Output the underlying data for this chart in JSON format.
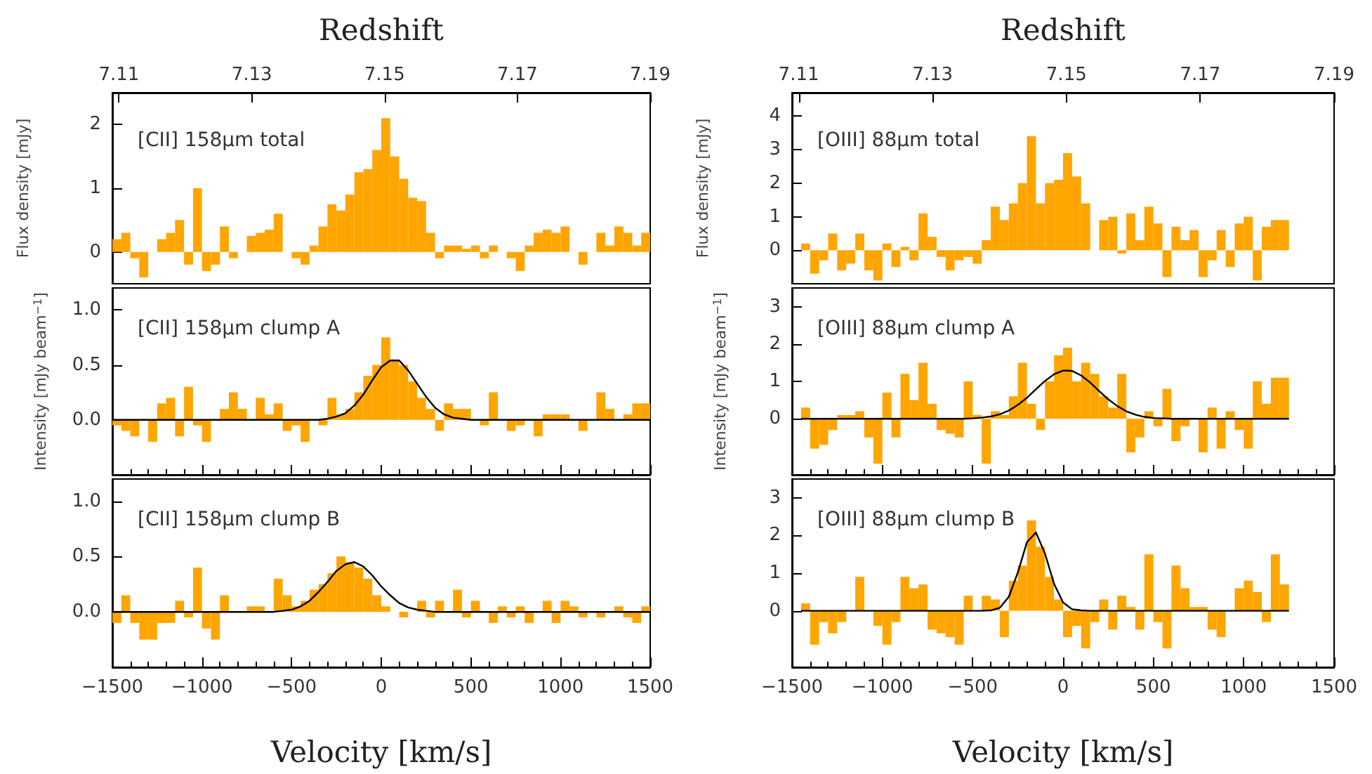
{
  "chart_data": [
    {
      "type": "histogram",
      "x2label": "Redshift",
      "ylabel": "Flux density [mJy]",
      "annotations": [
        "[CII] 158μm total"
      ],
      "x2lim": [
        7.109,
        7.19
      ],
      "x2ticks": [
        7.11,
        7.13,
        7.15,
        7.17,
        7.19
      ],
      "ylim": [
        -0.5,
        2.5
      ],
      "yticks": [
        0,
        1,
        2
      ],
      "series": [
        {
          "axis": "x2",
          "color": "#ffa500",
          "bins": [
            7.109,
            7.11035,
            7.1117,
            7.11305,
            7.1144,
            7.11575,
            7.1171,
            7.11845,
            7.1198,
            7.12115,
            7.1225,
            7.12385,
            7.1252,
            7.12655,
            7.1279,
            7.12925,
            7.1306,
            7.13195,
            7.1333,
            7.13465,
            7.136,
            7.13735,
            7.1387,
            7.14005,
            7.1414,
            7.14275,
            7.1441,
            7.14545,
            7.1468,
            7.14815,
            7.1495,
            7.15085,
            7.1522,
            7.15355,
            7.1549,
            7.15625,
            7.1576,
            7.15895,
            7.1603,
            7.16165,
            7.163,
            7.16435,
            7.1657,
            7.16705,
            7.1684,
            7.16975,
            7.1711,
            7.17245,
            7.1738,
            7.17515,
            7.1765,
            7.17785,
            7.1792,
            7.18055,
            7.1819,
            7.18325,
            7.1846,
            7.18595,
            7.1873,
            7.18865,
            7.19
          ],
          "values": [
            0.2,
            0.3,
            -0.1,
            -0.4,
            0.0,
            0.2,
            0.3,
            0.5,
            -0.2,
            1.0,
            -0.3,
            -0.2,
            0.4,
            -0.1,
            0.0,
            0.25,
            0.3,
            0.35,
            0.6,
            0.0,
            -0.1,
            -0.2,
            0.1,
            0.4,
            0.75,
            0.65,
            0.9,
            1.25,
            1.3,
            1.6,
            2.1,
            1.5,
            1.15,
            0.85,
            0.8,
            0.3,
            -0.1,
            0.1,
            0.1,
            0.05,
            0.1,
            -0.1,
            0.1,
            0.0,
            -0.1,
            -0.3,
            0.1,
            0.3,
            0.35,
            0.3,
            0.4,
            0.0,
            -0.2,
            0.0,
            0.3,
            0.1,
            0.4,
            0.3,
            0.1,
            0.3
          ]
        }
      ]
    },
    {
      "type": "histogram",
      "x2label": "Redshift",
      "ylabel": "Flux density [mJy]",
      "annotations": [
        "[OIII] 88μm total"
      ],
      "x2lim": [
        7.109,
        7.19
      ],
      "x2ticks": [
        7.11,
        7.13,
        7.15,
        7.17,
        7.19
      ],
      "ylim": [
        -1,
        4.7
      ],
      "yticks": [
        0,
        1,
        2,
        3,
        4
      ],
      "series": [
        {
          "axis": "x2",
          "color": "#ffa500",
          "bins": [
            7.11035,
            7.1117,
            7.11305,
            7.1144,
            7.11575,
            7.1171,
            7.11845,
            7.1198,
            7.12115,
            7.1225,
            7.12385,
            7.1252,
            7.12655,
            7.1279,
            7.12925,
            7.1306,
            7.13195,
            7.1333,
            7.13465,
            7.136,
            7.13735,
            7.1387,
            7.14005,
            7.1414,
            7.14275,
            7.1441,
            7.14545,
            7.1468,
            7.14815,
            7.1495,
            7.15085,
            7.1522,
            7.15355,
            7.1549,
            7.15625,
            7.1576,
            7.15895,
            7.1603,
            7.16165,
            7.163,
            7.16435,
            7.1657,
            7.16705,
            7.1684,
            7.16975,
            7.1711,
            7.17245,
            7.1738,
            7.17515,
            7.1765,
            7.17785,
            7.1792,
            7.18055,
            7.1819,
            7.18325
          ],
          "values": [
            0.2,
            -0.7,
            -0.3,
            0.5,
            -0.6,
            -0.4,
            0.5,
            -0.6,
            -0.9,
            0.2,
            -0.5,
            0.1,
            -0.3,
            1.1,
            0.4,
            -0.2,
            -0.6,
            -0.3,
            -0.2,
            -0.4,
            0.3,
            1.3,
            0.9,
            1.4,
            2.0,
            3.4,
            1.4,
            2.0,
            2.1,
            2.9,
            2.2,
            1.4,
            0.0,
            0.9,
            1.0,
            -0.1,
            1.1,
            0.3,
            1.3,
            0.8,
            -0.8,
            0.7,
            0.3,
            0.6,
            -0.8,
            -0.3,
            0.6,
            -0.5,
            0.8,
            1.0,
            -0.9,
            0.7,
            0.9,
            0.9
          ]
        }
      ]
    },
    {
      "type": "histogram",
      "ylabel": "Intensity [mJy beam$^{−1}$]",
      "annotations": [
        "[CII] 158μm clump A"
      ],
      "xlim": [
        -1500,
        1500
      ],
      "xticks": [
        -1500,
        -1000,
        -500,
        0,
        500,
        1000,
        1500
      ],
      "ylim": [
        -0.5,
        1.2
      ],
      "yticks": [
        {
          "value": 0,
          "label": "0.0"
        },
        {
          "value": 0.5,
          "label": "0.5"
        },
        {
          "value": 1,
          "label": "1.0"
        }
      ],
      "tick_labels": "y",
      "marker": "none",
      "series": [
        {
          "color": "#ffa500",
          "bins": [
            -1500,
            -1450,
            -1400,
            -1350,
            -1300,
            -1250,
            -1200,
            -1150,
            -1100,
            -1050,
            -1000,
            -950,
            -900,
            -850,
            -800,
            -750,
            -700,
            -650,
            -600,
            -550,
            -500,
            -450,
            -400,
            -350,
            -300,
            -250,
            -200,
            -150,
            -100,
            -50,
            0,
            50,
            100,
            150,
            200,
            250,
            300,
            350,
            400,
            450,
            500,
            550,
            600,
            650,
            700,
            750,
            800,
            850,
            900,
            950,
            1000,
            1050,
            1100,
            1150,
            1200,
            1250,
            1300,
            1350,
            1400,
            1450,
            1500
          ],
          "values": [
            -0.05,
            -0.1,
            -0.15,
            0.0,
            -0.2,
            0.15,
            0.2,
            -0.15,
            0.3,
            -0.05,
            -0.2,
            0.0,
            0.1,
            0.25,
            0.1,
            0.0,
            0.2,
            0.05,
            0.15,
            -0.1,
            -0.05,
            -0.2,
            0.0,
            -0.05,
            0.2,
            0.05,
            0.1,
            0.25,
            0.4,
            0.5,
            0.75,
            0.55,
            0.5,
            0.35,
            0.2,
            0.1,
            -0.1,
            0.15,
            0.1,
            0.1,
            0.0,
            -0.05,
            0.25,
            0.0,
            -0.1,
            -0.05,
            0.0,
            -0.15,
            0.05,
            0.05,
            0.05,
            0.0,
            -0.1,
            0.0,
            0.25,
            0.1,
            0.0,
            0.05,
            0.15,
            0.15
          ]
        },
        {
          "type": "line",
          "color": "#000000",
          "x": [
            -1500,
            -350,
            -300,
            -250,
            -200,
            -150,
            -100,
            -50,
            0,
            50,
            100,
            150,
            200,
            250,
            300,
            350,
            400,
            450,
            500,
            1500
          ],
          "values": [
            0,
            0,
            0.01,
            0.03,
            0.06,
            0.13,
            0.23,
            0.36,
            0.48,
            0.54,
            0.54,
            0.45,
            0.33,
            0.21,
            0.11,
            0.05,
            0.02,
            0.01,
            0,
            0
          ]
        }
      ]
    },
    {
      "type": "histogram",
      "ylabel": "Intensity [mJy beam$^{−1}$]",
      "annotations": [
        "[OIII] 88μm clump A"
      ],
      "xlim": [
        -1500,
        1500
      ],
      "xticks": [
        -1500,
        -1000,
        -500,
        0,
        500,
        1000,
        1500
      ],
      "ylim": [
        -1.5,
        3.5
      ],
      "yticks": [
        0,
        1,
        2,
        3
      ],
      "tick_labels": "y",
      "marker": "none",
      "series": [
        {
          "color": "#ffa500",
          "bins": [
            -1450,
            -1400,
            -1350,
            -1300,
            -1250,
            -1200,
            -1150,
            -1100,
            -1050,
            -1000,
            -950,
            -900,
            -850,
            -800,
            -750,
            -700,
            -650,
            -600,
            -550,
            -500,
            -450,
            -400,
            -350,
            -300,
            -250,
            -200,
            -150,
            -100,
            -50,
            0,
            50,
            100,
            150,
            200,
            250,
            300,
            350,
            400,
            450,
            500,
            550,
            600,
            650,
            700,
            750,
            800,
            850,
            900,
            950,
            1000,
            1050,
            1100,
            1150,
            1200,
            1250
          ],
          "values": [
            0.3,
            -0.8,
            -0.7,
            -0.3,
            0.1,
            0.1,
            0.2,
            -0.5,
            -1.2,
            0.7,
            -0.5,
            1.2,
            0.5,
            1.5,
            0.4,
            -0.3,
            -0.4,
            -0.5,
            1.0,
            0.1,
            -1.2,
            0.2,
            0.1,
            0.6,
            1.5,
            0.4,
            -0.3,
            1.0,
            1.7,
            1.9,
            1.0,
            1.5,
            1.2,
            0.6,
            0.3,
            1.2,
            -0.9,
            -0.5,
            0.2,
            -0.2,
            0.8,
            -0.6,
            -0.2,
            0.0,
            -0.9,
            0.3,
            -0.8,
            0.2,
            -0.3,
            -0.8,
            1.0,
            0.4,
            1.1,
            1.1
          ]
        },
        {
          "type": "line",
          "color": "#000000",
          "x": [
            -1450,
            -600,
            -550,
            -500,
            -450,
            -400,
            -350,
            -300,
            -250,
            -200,
            -150,
            -100,
            -50,
            0,
            50,
            100,
            150,
            200,
            250,
            300,
            350,
            400,
            450,
            500,
            550,
            600,
            1250
          ],
          "values": [
            0,
            0,
            0,
            0.01,
            0.03,
            0.06,
            0.12,
            0.22,
            0.37,
            0.56,
            0.79,
            1.01,
            1.19,
            1.29,
            1.28,
            1.16,
            0.97,
            0.74,
            0.52,
            0.34,
            0.2,
            0.11,
            0.05,
            0.02,
            0.01,
            0,
            0
          ]
        }
      ]
    },
    {
      "type": "histogram",
      "xlabel": "Velocity [km/s]",
      "annotations": [
        "[CII] 158μm clump B"
      ],
      "xlim": [
        -1500,
        1500
      ],
      "xticks": [
        {
          "value": -1500,
          "label": "−1500"
        },
        {
          "value": -1000,
          "label": "−1000"
        },
        {
          "value": -500,
          "label": "−500"
        },
        0,
        500,
        1000,
        1500
      ],
      "ylim": [
        -0.5,
        1.2
      ],
      "yticks": [
        {
          "value": 0,
          "label": "0.0"
        },
        {
          "value": 0.5,
          "label": "0.5"
        },
        {
          "value": 1,
          "label": "1.0"
        }
      ],
      "marker": "none",
      "series": [
        {
          "color": "#ffa500",
          "bins": [
            -1500,
            -1450,
            -1400,
            -1350,
            -1300,
            -1250,
            -1200,
            -1150,
            -1100,
            -1050,
            -1000,
            -950,
            -900,
            -850,
            -800,
            -750,
            -700,
            -650,
            -600,
            -550,
            -500,
            -450,
            -400,
            -350,
            -300,
            -250,
            -200,
            -150,
            -100,
            -50,
            0,
            50,
            100,
            150,
            200,
            250,
            300,
            350,
            400,
            450,
            500,
            550,
            600,
            650,
            700,
            750,
            800,
            850,
            900,
            950,
            1000,
            1050,
            1100,
            1150,
            1200,
            1250,
            1300,
            1350,
            1400,
            1450,
            1500
          ],
          "values": [
            -0.1,
            0.15,
            -0.1,
            -0.25,
            -0.25,
            -0.1,
            -0.1,
            0.1,
            -0.05,
            0.4,
            -0.15,
            -0.25,
            0.15,
            0.0,
            0.0,
            0.05,
            0.05,
            0.0,
            0.3,
            0.15,
            0.05,
            0.1,
            0.2,
            0.25,
            0.35,
            0.5,
            0.45,
            0.4,
            0.3,
            0.15,
            0.05,
            0.0,
            -0.05,
            0.0,
            0.1,
            -0.05,
            0.1,
            0.0,
            0.2,
            -0.05,
            0.1,
            0.0,
            -0.1,
            0.05,
            -0.05,
            0.05,
            -0.1,
            0.0,
            0.1,
            -0.1,
            0.1,
            0.05,
            -0.05,
            0.0,
            -0.05,
            0.0,
            0.05,
            -0.05,
            -0.1,
            0.05
          ]
        },
        {
          "type": "line",
          "color": "#000000",
          "x": [
            -1500,
            -600,
            -550,
            -500,
            -450,
            -400,
            -350,
            -300,
            -250,
            -200,
            -150,
            -100,
            -50,
            0,
            50,
            100,
            150,
            200,
            250,
            300,
            1500
          ],
          "values": [
            0,
            0,
            0.01,
            0.02,
            0.05,
            0.1,
            0.18,
            0.27,
            0.37,
            0.43,
            0.45,
            0.41,
            0.33,
            0.23,
            0.15,
            0.08,
            0.04,
            0.02,
            0.01,
            0,
            0
          ]
        }
      ]
    },
    {
      "type": "histogram",
      "xlabel": "Velocity [km/s]",
      "annotations": [
        "[OIII] 88μm clump B"
      ],
      "xlim": [
        -1500,
        1500
      ],
      "xticks": [
        {
          "value": -1500,
          "label": "−1500"
        },
        {
          "value": -1000,
          "label": "−1000"
        },
        {
          "value": -500,
          "label": "−500"
        },
        0,
        500,
        1000,
        1500
      ],
      "ylim": [
        -1.5,
        3.5
      ],
      "yticks": [
        0,
        1,
        2,
        3
      ],
      "marker": "none",
      "series": [
        {
          "color": "#ffa500",
          "bins": [
            -1450,
            -1400,
            -1350,
            -1300,
            -1250,
            -1200,
            -1150,
            -1100,
            -1050,
            -1000,
            -950,
            -900,
            -850,
            -800,
            -750,
            -700,
            -650,
            -600,
            -550,
            -500,
            -450,
            -400,
            -350,
            -300,
            -250,
            -200,
            -150,
            -100,
            -50,
            0,
            50,
            100,
            150,
            200,
            250,
            300,
            350,
            400,
            450,
            500,
            550,
            600,
            650,
            700,
            750,
            800,
            850,
            900,
            950,
            1000,
            1050,
            1100,
            1150,
            1200,
            1250
          ],
          "values": [
            0.2,
            -0.9,
            -0.3,
            -0.6,
            -0.3,
            0.0,
            0.9,
            null,
            -0.4,
            -0.9,
            -0.3,
            0.9,
            0.6,
            0.7,
            -0.5,
            -0.6,
            -0.7,
            -0.9,
            0.4,
            null,
            0.4,
            0.3,
            -0.7,
            0.8,
            1.2,
            2.4,
            1.7,
            0.9,
            0.3,
            -0.7,
            -0.4,
            -1.0,
            -0.3,
            0.3,
            -0.5,
            0.4,
            0.1,
            -0.5,
            1.5,
            -0.3,
            -1.0,
            1.2,
            0.6,
            0.1,
            0.1,
            -0.5,
            -0.7,
            0.0,
            0.6,
            0.8,
            0.5,
            -0.3,
            1.5,
            0.7
          ]
        },
        {
          "type": "line",
          "color": "#000000",
          "x": [
            -1450,
            -450,
            -400,
            -350,
            -300,
            -250,
            -200,
            -150,
            -100,
            -50,
            0,
            50,
            100,
            150,
            1250
          ],
          "values": [
            0,
            0,
            0.01,
            0.08,
            0.37,
            1.02,
            1.82,
            2.08,
            1.52,
            0.72,
            0.22,
            0.04,
            0.01,
            0,
            0
          ]
        }
      ]
    }
  ]
}
